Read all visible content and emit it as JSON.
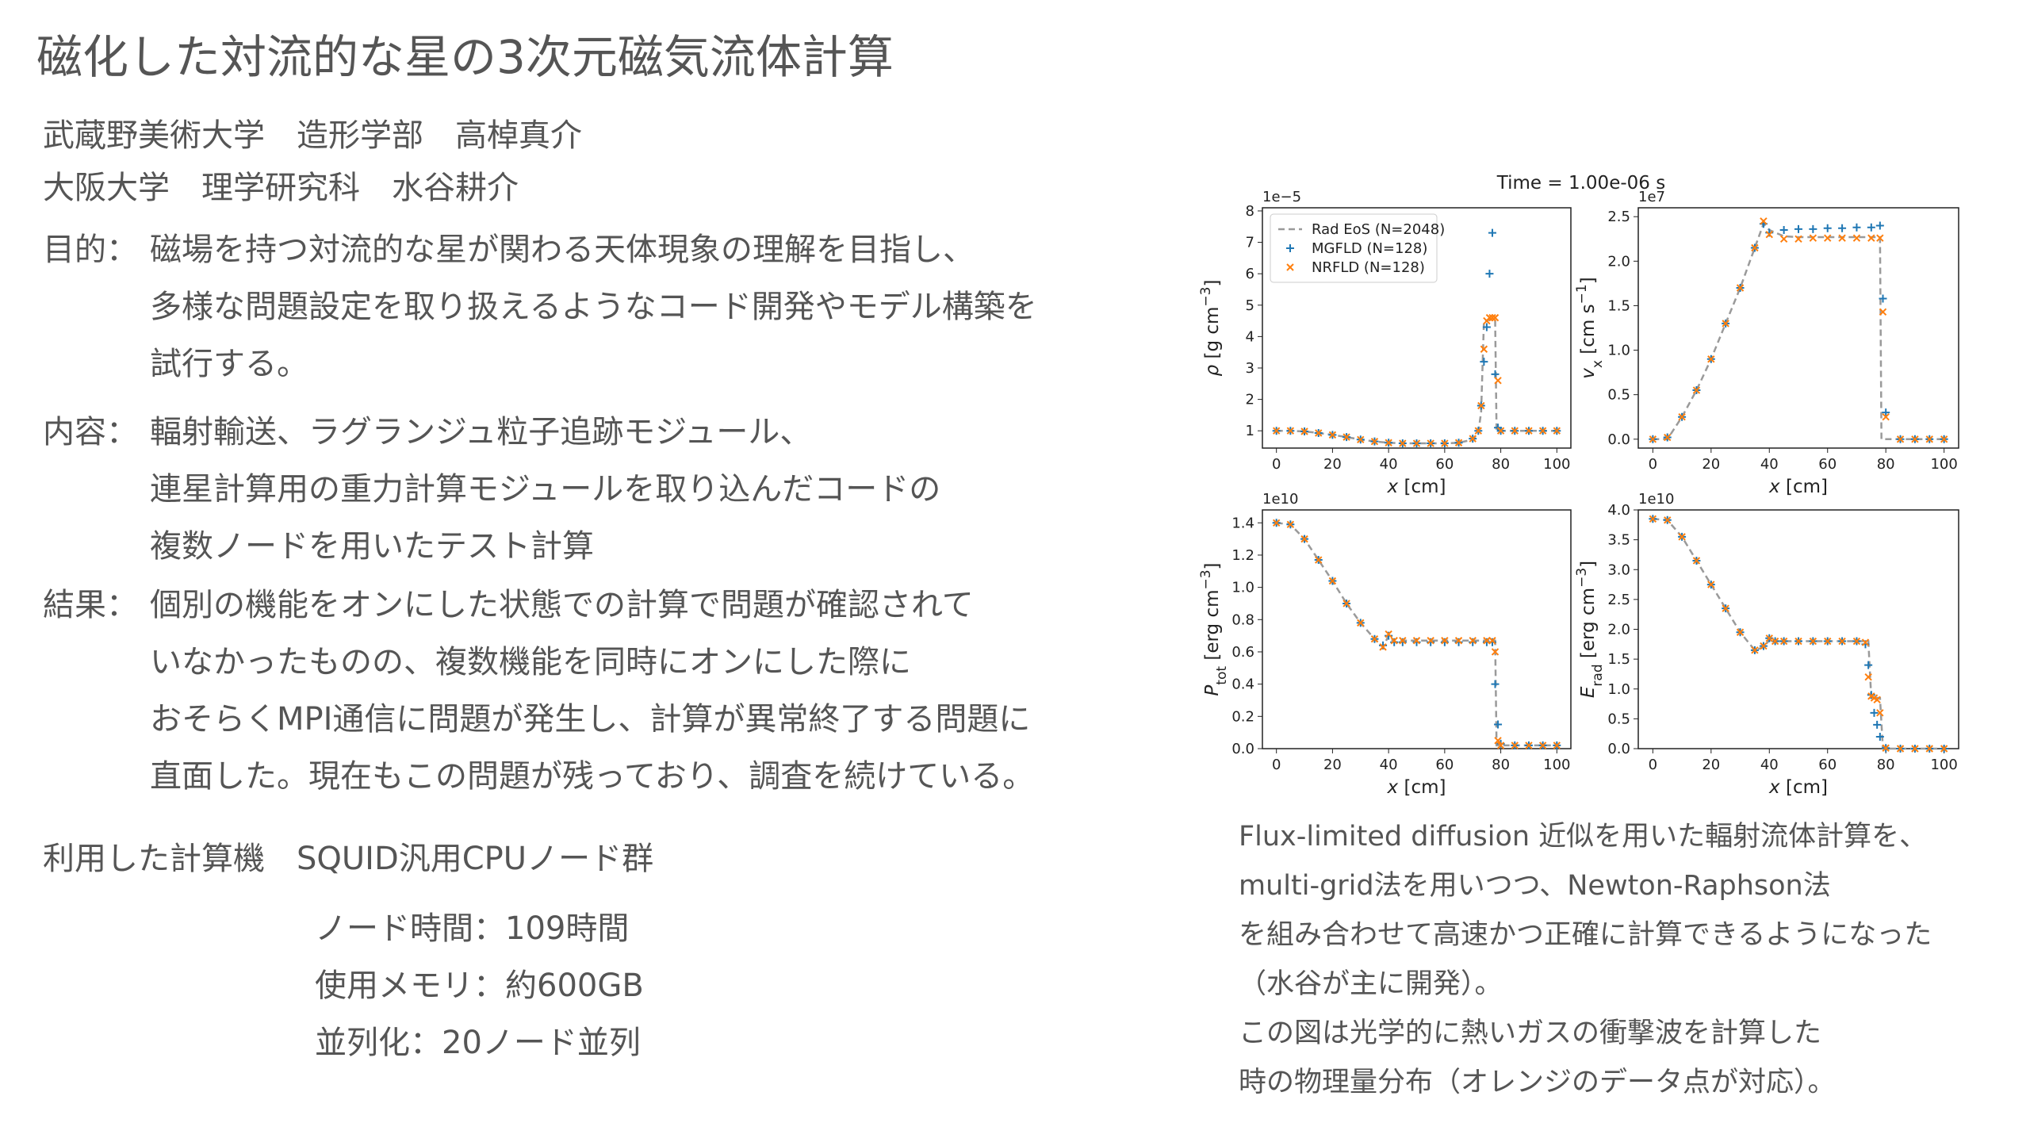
{
  "title": "磁化した対流的な星の3次元磁気流体計算",
  "authors": [
    "武蔵野美術大学　造形学部　高棹真介",
    "大阪大学　理学研究科　水谷耕介"
  ],
  "sections": [
    {
      "label": "目的：",
      "lines": [
        "磁場を持つ対流的な星が関わる天体現象の理解を目指し、",
        "多様な問題設定を取り扱えるようなコード開発やモデル構築を",
        "試行する。"
      ]
    },
    {
      "label": "内容：",
      "lines": [
        "輻射輸送、ラグランジュ粒子追跡モジュール、",
        "連星計算用の重力計算モジュールを取り込んだコードの",
        "複数ノードを用いたテスト計算"
      ]
    },
    {
      "label": "結果：",
      "lines": [
        "個別の機能をオンにした状態での計算で問題が確認されて",
        "いなかったものの、複数機能を同時にオンにした際に",
        "おそらくMPI通信に問題が発生し、計算が異常終了する問題に",
        "直面した。現在もこの問題が残っており、調査を続けている。"
      ]
    }
  ],
  "machine": {
    "label": "利用した計算機　SQUID汎用CPUノード群",
    "items": [
      "ノード時間：109時間",
      "使用メモリ：約600GB",
      "並列化：20ノード並列"
    ]
  },
  "figure": {
    "title": "Time = 1.00e-06 s",
    "series_styles": [
      {
        "name": "Rad EoS (N=2048)",
        "color": "#9a9a9a",
        "style": "dashed"
      },
      {
        "name": "MGFLD (N=128)",
        "color": "#1f77b4",
        "style": "plus"
      },
      {
        "name": "NRFLD (N=128)",
        "color": "#ff7f0e",
        "style": "cross"
      }
    ],
    "legend_panel": 0,
    "legend_loc": "upper left",
    "panels": [
      {
        "exponent": "1e−5",
        "xlabel": [
          {
            "text": "x",
            "style": "italic"
          },
          {
            "text": " [cm]"
          }
        ],
        "ylabel": [
          {
            "text": "ρ",
            "style": "italic"
          },
          {
            "text": " [g cm"
          },
          {
            "text": "−3",
            "style": "sup"
          },
          {
            "text": "]"
          }
        ],
        "xlim": [
          -5,
          105
        ],
        "xticks": [
          0,
          20,
          40,
          60,
          80,
          100
        ],
        "ylim": [
          0.45,
          8.1
        ],
        "yticks": [
          1,
          2,
          3,
          4,
          5,
          6,
          7,
          8
        ],
        "series": [
          {
            "x": [
              0,
              5,
              10,
              15,
              20,
              25,
              30,
              35,
              40,
              45,
              50,
              55,
              60,
              65,
              70,
              72,
              73,
              74,
              77,
              77.5,
              78,
              78.5,
              80,
              85,
              90,
              95,
              100
            ],
            "values": [
              1,
              1,
              0.98,
              0.93,
              0.87,
              0.8,
              0.72,
              0.66,
              0.62,
              0.6,
              0.6,
              0.6,
              0.6,
              0.62,
              0.72,
              0.95,
              1.6,
              4.5,
              4.55,
              4.5,
              4.5,
              1,
              1,
              1,
              1,
              1,
              1
            ]
          },
          {
            "x": [
              0,
              5,
              10,
              15,
              20,
              25,
              30,
              35,
              40,
              45,
              50,
              55,
              60,
              65,
              70,
              72,
              73,
              74,
              75,
              76,
              77,
              78,
              79,
              80,
              85,
              90,
              95,
              100
            ],
            "values": [
              1,
              1,
              0.98,
              0.93,
              0.87,
              0.8,
              0.72,
              0.66,
              0.62,
              0.6,
              0.6,
              0.6,
              0.6,
              0.62,
              0.75,
              1,
              1.8,
              3.2,
              4.3,
              6,
              7.3,
              2.8,
              1.1,
              1,
              1,
              1,
              1,
              1
            ]
          },
          {
            "x": [
              0,
              5,
              10,
              15,
              20,
              25,
              30,
              35,
              40,
              45,
              50,
              55,
              60,
              65,
              70,
              72,
              73,
              74,
              75,
              76,
              77,
              78,
              79,
              80,
              85,
              90,
              95,
              100
            ],
            "values": [
              1,
              1,
              0.98,
              0.93,
              0.87,
              0.8,
              0.72,
              0.66,
              0.62,
              0.6,
              0.6,
              0.6,
              0.6,
              0.62,
              0.75,
              1,
              1.8,
              3.6,
              4.5,
              4.6,
              4.6,
              4.6,
              2.6,
              1,
              1,
              1,
              1,
              1
            ]
          }
        ]
      },
      {
        "exponent": "1e7",
        "xlabel": [
          {
            "text": "x",
            "style": "italic"
          },
          {
            "text": " [cm]"
          }
        ],
        "ylabel": [
          {
            "text": "v",
            "style": "italic"
          },
          {
            "text": "x",
            "style": "sub"
          },
          {
            "text": " [cm s"
          },
          {
            "text": "−1",
            "style": "sup"
          },
          {
            "text": "]"
          }
        ],
        "xlim": [
          -5,
          105
        ],
        "xticks": [
          0,
          20,
          40,
          60,
          80,
          100
        ],
        "ylim": [
          -0.1,
          2.6
        ],
        "yticks": [
          {
            "value": 0,
            "label": "0.0"
          },
          0.5,
          {
            "value": 1,
            "label": "1.0"
          },
          1.5,
          {
            "value": 2,
            "label": "2.0"
          },
          2.5
        ],
        "series": [
          {
            "x": [
              0,
              5,
              10,
              15,
              20,
              25,
              30,
              35,
              38,
              40,
              45,
              50,
              55,
              60,
              65,
              70,
              75,
              78,
              78.5,
              80,
              85,
              90,
              95,
              100
            ],
            "values": [
              0,
              0,
              0.25,
              0.55,
              0.9,
              1.3,
              1.7,
              2.15,
              2.42,
              2.35,
              2.28,
              2.27,
              2.27,
              2.27,
              2.27,
              2.27,
              2.27,
              2.27,
              0,
              0,
              0,
              0,
              0,
              0
            ]
          },
          {
            "x": [
              0,
              5,
              10,
              15,
              20,
              25,
              30,
              35,
              38,
              40,
              45,
              50,
              55,
              60,
              65,
              70,
              75,
              78,
              79,
              80,
              85,
              90,
              95,
              100
            ],
            "values": [
              0,
              0.02,
              0.25,
              0.55,
              0.9,
              1.3,
              1.7,
              2.15,
              2.42,
              2.32,
              2.35,
              2.36,
              2.36,
              2.37,
              2.37,
              2.38,
              2.38,
              2.4,
              1.58,
              0.3,
              0,
              0,
              0,
              0
            ]
          },
          {
            "x": [
              0,
              5,
              10,
              15,
              20,
              25,
              30,
              35,
              38,
              40,
              45,
              50,
              55,
              60,
              65,
              70,
              75,
              78,
              79,
              80,
              85,
              90,
              95,
              100
            ],
            "values": [
              0,
              0.02,
              0.25,
              0.55,
              0.9,
              1.3,
              1.7,
              2.15,
              2.45,
              2.3,
              2.25,
              2.25,
              2.26,
              2.26,
              2.26,
              2.26,
              2.26,
              2.26,
              1.43,
              0.25,
              0,
              0,
              0,
              0
            ]
          }
        ]
      },
      {
        "exponent": "1e10",
        "xlabel": [
          {
            "text": "x",
            "style": "italic"
          },
          {
            "text": " [cm]"
          }
        ],
        "ylabel": [
          {
            "text": "P",
            "style": "italic"
          },
          {
            "text": "tot",
            "style": "sub"
          },
          {
            "text": " [erg cm"
          },
          {
            "text": "−3",
            "style": "sup"
          },
          {
            "text": "]"
          }
        ],
        "xlim": [
          -5,
          105
        ],
        "xticks": [
          0,
          20,
          40,
          60,
          80,
          100
        ],
        "ylim": [
          0,
          1.48
        ],
        "yticks": [
          {
            "value": 0,
            "label": "0.0"
          },
          0.2,
          0.4,
          0.6,
          0.8,
          {
            "value": 1,
            "label": "1.0"
          },
          1.2,
          1.4
        ],
        "series": [
          {
            "x": [
              0,
              5,
              10,
              15,
              20,
              25,
              30,
              35,
              38,
              40,
              42,
              45,
              50,
              55,
              60,
              65,
              70,
              75,
              77,
              78,
              78.5,
              80,
              85,
              90,
              95,
              100
            ],
            "values": [
              1.4,
              1.39,
              1.3,
              1.17,
              1.04,
              0.9,
              0.78,
              0.68,
              0.63,
              0.7,
              0.66,
              0.67,
              0.67,
              0.67,
              0.67,
              0.67,
              0.67,
              0.67,
              0.67,
              0.67,
              0.02,
              0.02,
              0.02,
              0.02,
              0.02,
              0.02
            ]
          },
          {
            "x": [
              0,
              5,
              10,
              15,
              20,
              25,
              30,
              35,
              38,
              40,
              42,
              45,
              50,
              55,
              60,
              65,
              70,
              75,
              77,
              78,
              79,
              80,
              85,
              90,
              95,
              100
            ],
            "values": [
              1.4,
              1.39,
              1.3,
              1.17,
              1.04,
              0.9,
              0.78,
              0.68,
              0.64,
              0.7,
              0.66,
              0.66,
              0.66,
              0.66,
              0.66,
              0.66,
              0.66,
              0.66,
              0.66,
              0.4,
              0.15,
              0.03,
              0.02,
              0.02,
              0.02,
              0.02
            ]
          },
          {
            "x": [
              0,
              5,
              10,
              15,
              20,
              25,
              30,
              35,
              38,
              40,
              42,
              45,
              50,
              55,
              60,
              65,
              70,
              75,
              77,
              78,
              79,
              80,
              85,
              90,
              95,
              100
            ],
            "values": [
              1.4,
              1.39,
              1.3,
              1.17,
              1.04,
              0.9,
              0.78,
              0.68,
              0.63,
              0.71,
              0.67,
              0.67,
              0.67,
              0.67,
              0.67,
              0.67,
              0.67,
              0.67,
              0.67,
              0.6,
              0.05,
              0.02,
              0.02,
              0.02,
              0.02,
              0.02
            ]
          }
        ]
      },
      {
        "exponent": "1e10",
        "xlabel": [
          {
            "text": "x",
            "style": "italic"
          },
          {
            "text": " [cm]"
          }
        ],
        "ylabel": [
          {
            "text": "E",
            "style": "italic"
          },
          {
            "text": "rad",
            "style": "sub"
          },
          {
            "text": " [erg cm"
          },
          {
            "text": "−3",
            "style": "sup"
          },
          {
            "text": "]"
          }
        ],
        "xlim": [
          -5,
          105
        ],
        "xticks": [
          0,
          20,
          40,
          60,
          80,
          100
        ],
        "ylim": [
          0,
          4
        ],
        "yticks": [
          {
            "value": 0,
            "label": "0.0"
          },
          0.5,
          {
            "value": 1,
            "label": "1.0"
          },
          1.5,
          {
            "value": 2,
            "label": "2.0"
          },
          2.5,
          {
            "value": 3,
            "label": "3.0"
          },
          3.5,
          {
            "value": 4,
            "label": "4.0"
          }
        ],
        "series": [
          {
            "x": [
              0,
              5,
              10,
              15,
              20,
              25,
              30,
              35,
              38,
              40,
              42,
              45,
              50,
              55,
              60,
              65,
              70,
              73,
              74,
              75,
              76,
              77,
              78,
              79,
              85,
              90,
              95,
              100
            ],
            "values": [
              3.85,
              3.83,
              3.55,
              3.15,
              2.75,
              2.35,
              1.95,
              1.65,
              1.7,
              1.82,
              1.8,
              1.8,
              1.8,
              1.8,
              1.8,
              1.8,
              1.8,
              1.8,
              1.8,
              0.85,
              0.85,
              0.85,
              0.85,
              0,
              0,
              0,
              0,
              0
            ]
          },
          {
            "x": [
              0,
              5,
              10,
              15,
              20,
              25,
              30,
              35,
              38,
              40,
              42,
              45,
              50,
              55,
              60,
              65,
              70,
              73,
              74,
              75,
              76,
              77,
              78,
              80,
              85,
              90,
              95,
              100
            ],
            "values": [
              3.85,
              3.83,
              3.55,
              3.15,
              2.75,
              2.35,
              1.95,
              1.65,
              1.72,
              1.85,
              1.8,
              1.8,
              1.8,
              1.8,
              1.8,
              1.8,
              1.8,
              1.75,
              1.4,
              0.9,
              0.6,
              0.4,
              0.2,
              0.01,
              0,
              0,
              0,
              0
            ]
          },
          {
            "x": [
              0,
              5,
              10,
              15,
              20,
              25,
              30,
              35,
              38,
              40,
              42,
              45,
              50,
              55,
              60,
              65,
              70,
              73,
              74,
              75,
              76,
              77,
              78,
              80,
              85,
              90,
              95,
              100
            ],
            "values": [
              3.85,
              3.83,
              3.55,
              3.15,
              2.75,
              2.35,
              1.95,
              1.65,
              1.72,
              1.85,
              1.8,
              1.8,
              1.8,
              1.8,
              1.8,
              1.8,
              1.8,
              1.78,
              1.2,
              0.88,
              0.85,
              0.82,
              0.6,
              0.01,
              0,
              0,
              0,
              0
            ]
          }
        ]
      }
    ]
  },
  "caption": [
    "Flux-limited diffusion 近似を用いた輻射流体計算を、",
    "multi-grid法を用いつつ、Newton-Raphson法",
    "を組み合わせて高速かつ正確に計算できるようになった",
    "（水谷が主に開発）。",
    "この図は光学的に熱いガスの衝撃波を計算した",
    "時の物理量分布（オレンジのデータ点が対応）。"
  ]
}
